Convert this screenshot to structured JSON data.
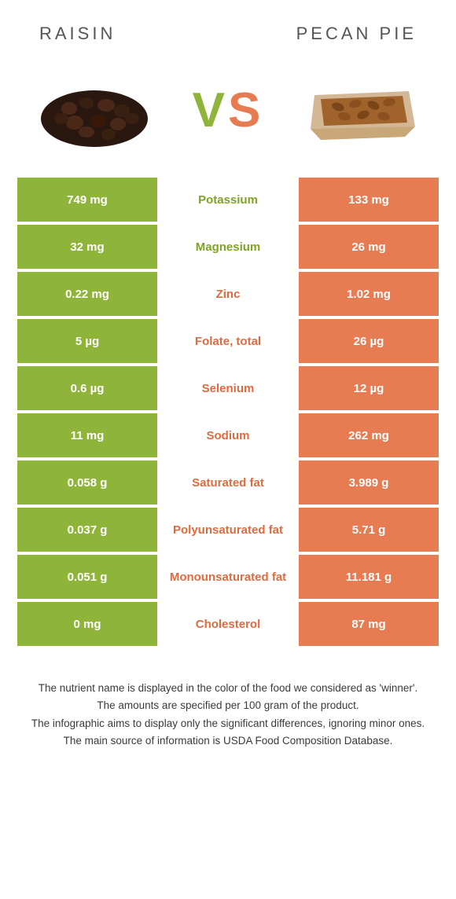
{
  "left": {
    "title": "RAISIN"
  },
  "right": {
    "title": "PECAN PIE"
  },
  "vs": {
    "v": "V",
    "s": "S"
  },
  "colors": {
    "left": "#8fb43a",
    "right": "#e77b52",
    "left_text": "#7da424",
    "right_text": "#e06a3f"
  },
  "rows": [
    {
      "label": "Potassium",
      "winner": "left",
      "left": "749 mg",
      "right": "133 mg"
    },
    {
      "label": "Magnesium",
      "winner": "left",
      "left": "32 mg",
      "right": "26 mg"
    },
    {
      "label": "Zinc",
      "winner": "right",
      "left": "0.22 mg",
      "right": "1.02 mg"
    },
    {
      "label": "Folate, total",
      "winner": "right",
      "left": "5 µg",
      "right": "26 µg"
    },
    {
      "label": "Selenium",
      "winner": "right",
      "left": "0.6 µg",
      "right": "12 µg"
    },
    {
      "label": "Sodium",
      "winner": "right",
      "left": "11 mg",
      "right": "262 mg"
    },
    {
      "label": "Saturated fat",
      "winner": "right",
      "left": "0.058 g",
      "right": "3.989 g"
    },
    {
      "label": "Polyunsaturated fat",
      "winner": "right",
      "left": "0.037 g",
      "right": "5.71 g"
    },
    {
      "label": "Monounsaturated fat",
      "winner": "right",
      "left": "0.051 g",
      "right": "11.181 g"
    },
    {
      "label": "Cholesterol",
      "winner": "right",
      "left": "0 mg",
      "right": "87 mg"
    }
  ],
  "footer": {
    "l1": "The nutrient name is displayed in the color of the food we considered as 'winner'.",
    "l2": "The amounts are specified per 100 gram of the product.",
    "l3": "The infographic aims to display only the significant differences, ignoring minor ones.",
    "l4": "The main source of information is USDA Food Composition Database."
  }
}
